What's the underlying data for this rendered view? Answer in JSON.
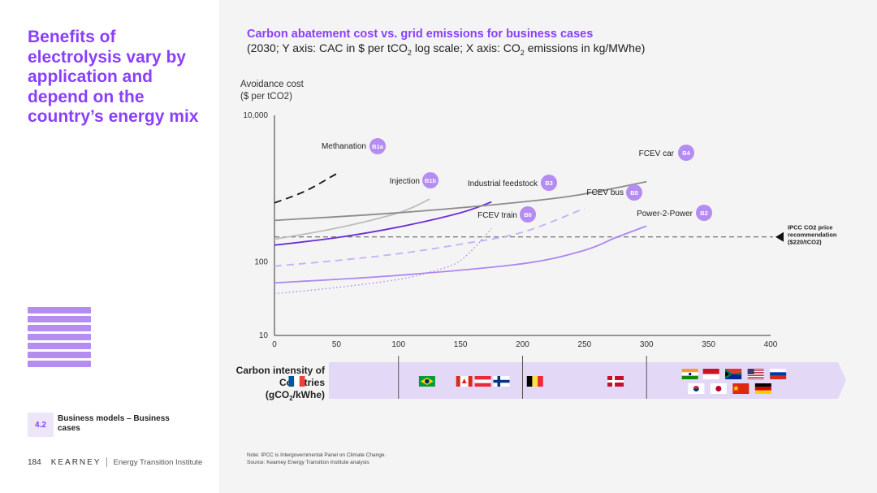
{
  "slide": {
    "headline": "Benefits of electrolysis vary by application and depend on the country’s energy mix",
    "section_number": "4.2",
    "section_label": "Business models – Business cases",
    "page_number": "184",
    "brand": "KEARNEY",
    "institute": "Energy Transition Institute",
    "footnote_1": "Note: IPCC is Intergovernmental Panel on Climate Change.",
    "footnote_2": "Source: Kearney Energy Transition Institute analysis",
    "accent_color": "#8a3ffc"
  },
  "chart_title": "Carbon abatement cost vs. grid emissions for business cases",
  "chart_subtitle_a": "(2030; Y axis: CAC in $ per tCO",
  "chart_subtitle_sub1": "2",
  "chart_subtitle_b": " log scale; X axis: CO",
  "chart_subtitle_sub2": "2",
  "chart_subtitle_c": " emissions in kg/MWhe)",
  "chart_data": {
    "type": "line",
    "y_scale": "log",
    "ylabel_line1": "Avoidance cost",
    "ylabel_line2": "($ per tCO2)",
    "xlim": [
      0,
      400
    ],
    "ylim": [
      10,
      10000
    ],
    "x_ticks": [
      0,
      50,
      100,
      150,
      200,
      250,
      300,
      350,
      400
    ],
    "y_ticks": [
      10,
      100,
      10000
    ],
    "y_tick_labels": [
      "10",
      "100",
      "10,000"
    ],
    "reference_line": {
      "value": 220,
      "label_lines": [
        "IPCC CO2 price",
        "recommendation",
        "($220/tCO2)"
      ]
    },
    "series": [
      {
        "name": "Methanation",
        "badge": "B1a",
        "color": "#111111",
        "style": "dashed",
        "x": [
          0,
          25,
          50
        ],
        "y": [
          640,
          930,
          1600
        ]
      },
      {
        "name": "Injection",
        "badge": "B1b",
        "color": "#bdbdbd",
        "style": "solid",
        "x": [
          0,
          50,
          100,
          125
        ],
        "y": [
          205,
          290,
          470,
          720
        ]
      },
      {
        "name": "Industrial feedstock",
        "badge": "B3",
        "color": "#6c2fd8",
        "style": "solid",
        "x": [
          0,
          50,
          100,
          150,
          175
        ],
        "y": [
          170,
          215,
          300,
          470,
          660
        ]
      },
      {
        "name": "FCEV car",
        "badge": "B4",
        "color": "#8c8c8c",
        "style": "solid",
        "x": [
          0,
          100,
          200,
          250,
          300
        ],
        "y": [
          370,
          470,
          660,
          850,
          1250
        ]
      },
      {
        "name": "FCEV bus",
        "badge": "B5",
        "color": "#c7b0f4",
        "style": "dashed",
        "x": [
          0,
          50,
          100,
          150,
          200,
          250
        ],
        "y": [
          88,
          105,
          130,
          175,
          255,
          540
        ]
      },
      {
        "name": "FCEV train",
        "badge": "B6",
        "color": "#a07ce8",
        "style": "dotted",
        "x": [
          0,
          50,
          100,
          125,
          150,
          175
        ],
        "y": [
          37,
          45,
          58,
          73,
          105,
          285
        ]
      },
      {
        "name": "Power-2-Power",
        "badge": "B2",
        "color": "#ad86f0",
        "style": "solid",
        "x": [
          0,
          100,
          200,
          250,
          275,
          300
        ],
        "y": [
          52,
          66,
          95,
          145,
          215,
          310
        ]
      }
    ]
  },
  "countries": {
    "title_line1": "Carbon intensity of",
    "title_line2": "Countries",
    "title_line3": "(gCO",
    "title_sub": "2",
    "title_line3_end": "/kWhe)",
    "flags": [
      {
        "name": "france-flag",
        "x": 18
      },
      {
        "name": "brazil-flag",
        "x": 123
      },
      {
        "name": "canada-flag",
        "x": 153
      },
      {
        "name": "austria-flag",
        "x": 168
      },
      {
        "name": "finland-flag",
        "x": 183
      },
      {
        "name": "belgium-flag",
        "x": 210
      },
      {
        "name": "denmark-flag",
        "x": 275
      },
      {
        "name": "india-flag",
        "x": 335
      },
      {
        "name": "indonesia-flag",
        "x": 352
      },
      {
        "name": "south-africa-flag",
        "x": 370
      },
      {
        "name": "usa-flag",
        "x": 388
      },
      {
        "name": "russia-flag",
        "x": 406
      },
      {
        "name": "south-korea-flag",
        "x": 340
      },
      {
        "name": "japan-flag",
        "x": 358
      },
      {
        "name": "china-flag",
        "x": 376
      },
      {
        "name": "germany-flag",
        "x": 394
      }
    ]
  }
}
